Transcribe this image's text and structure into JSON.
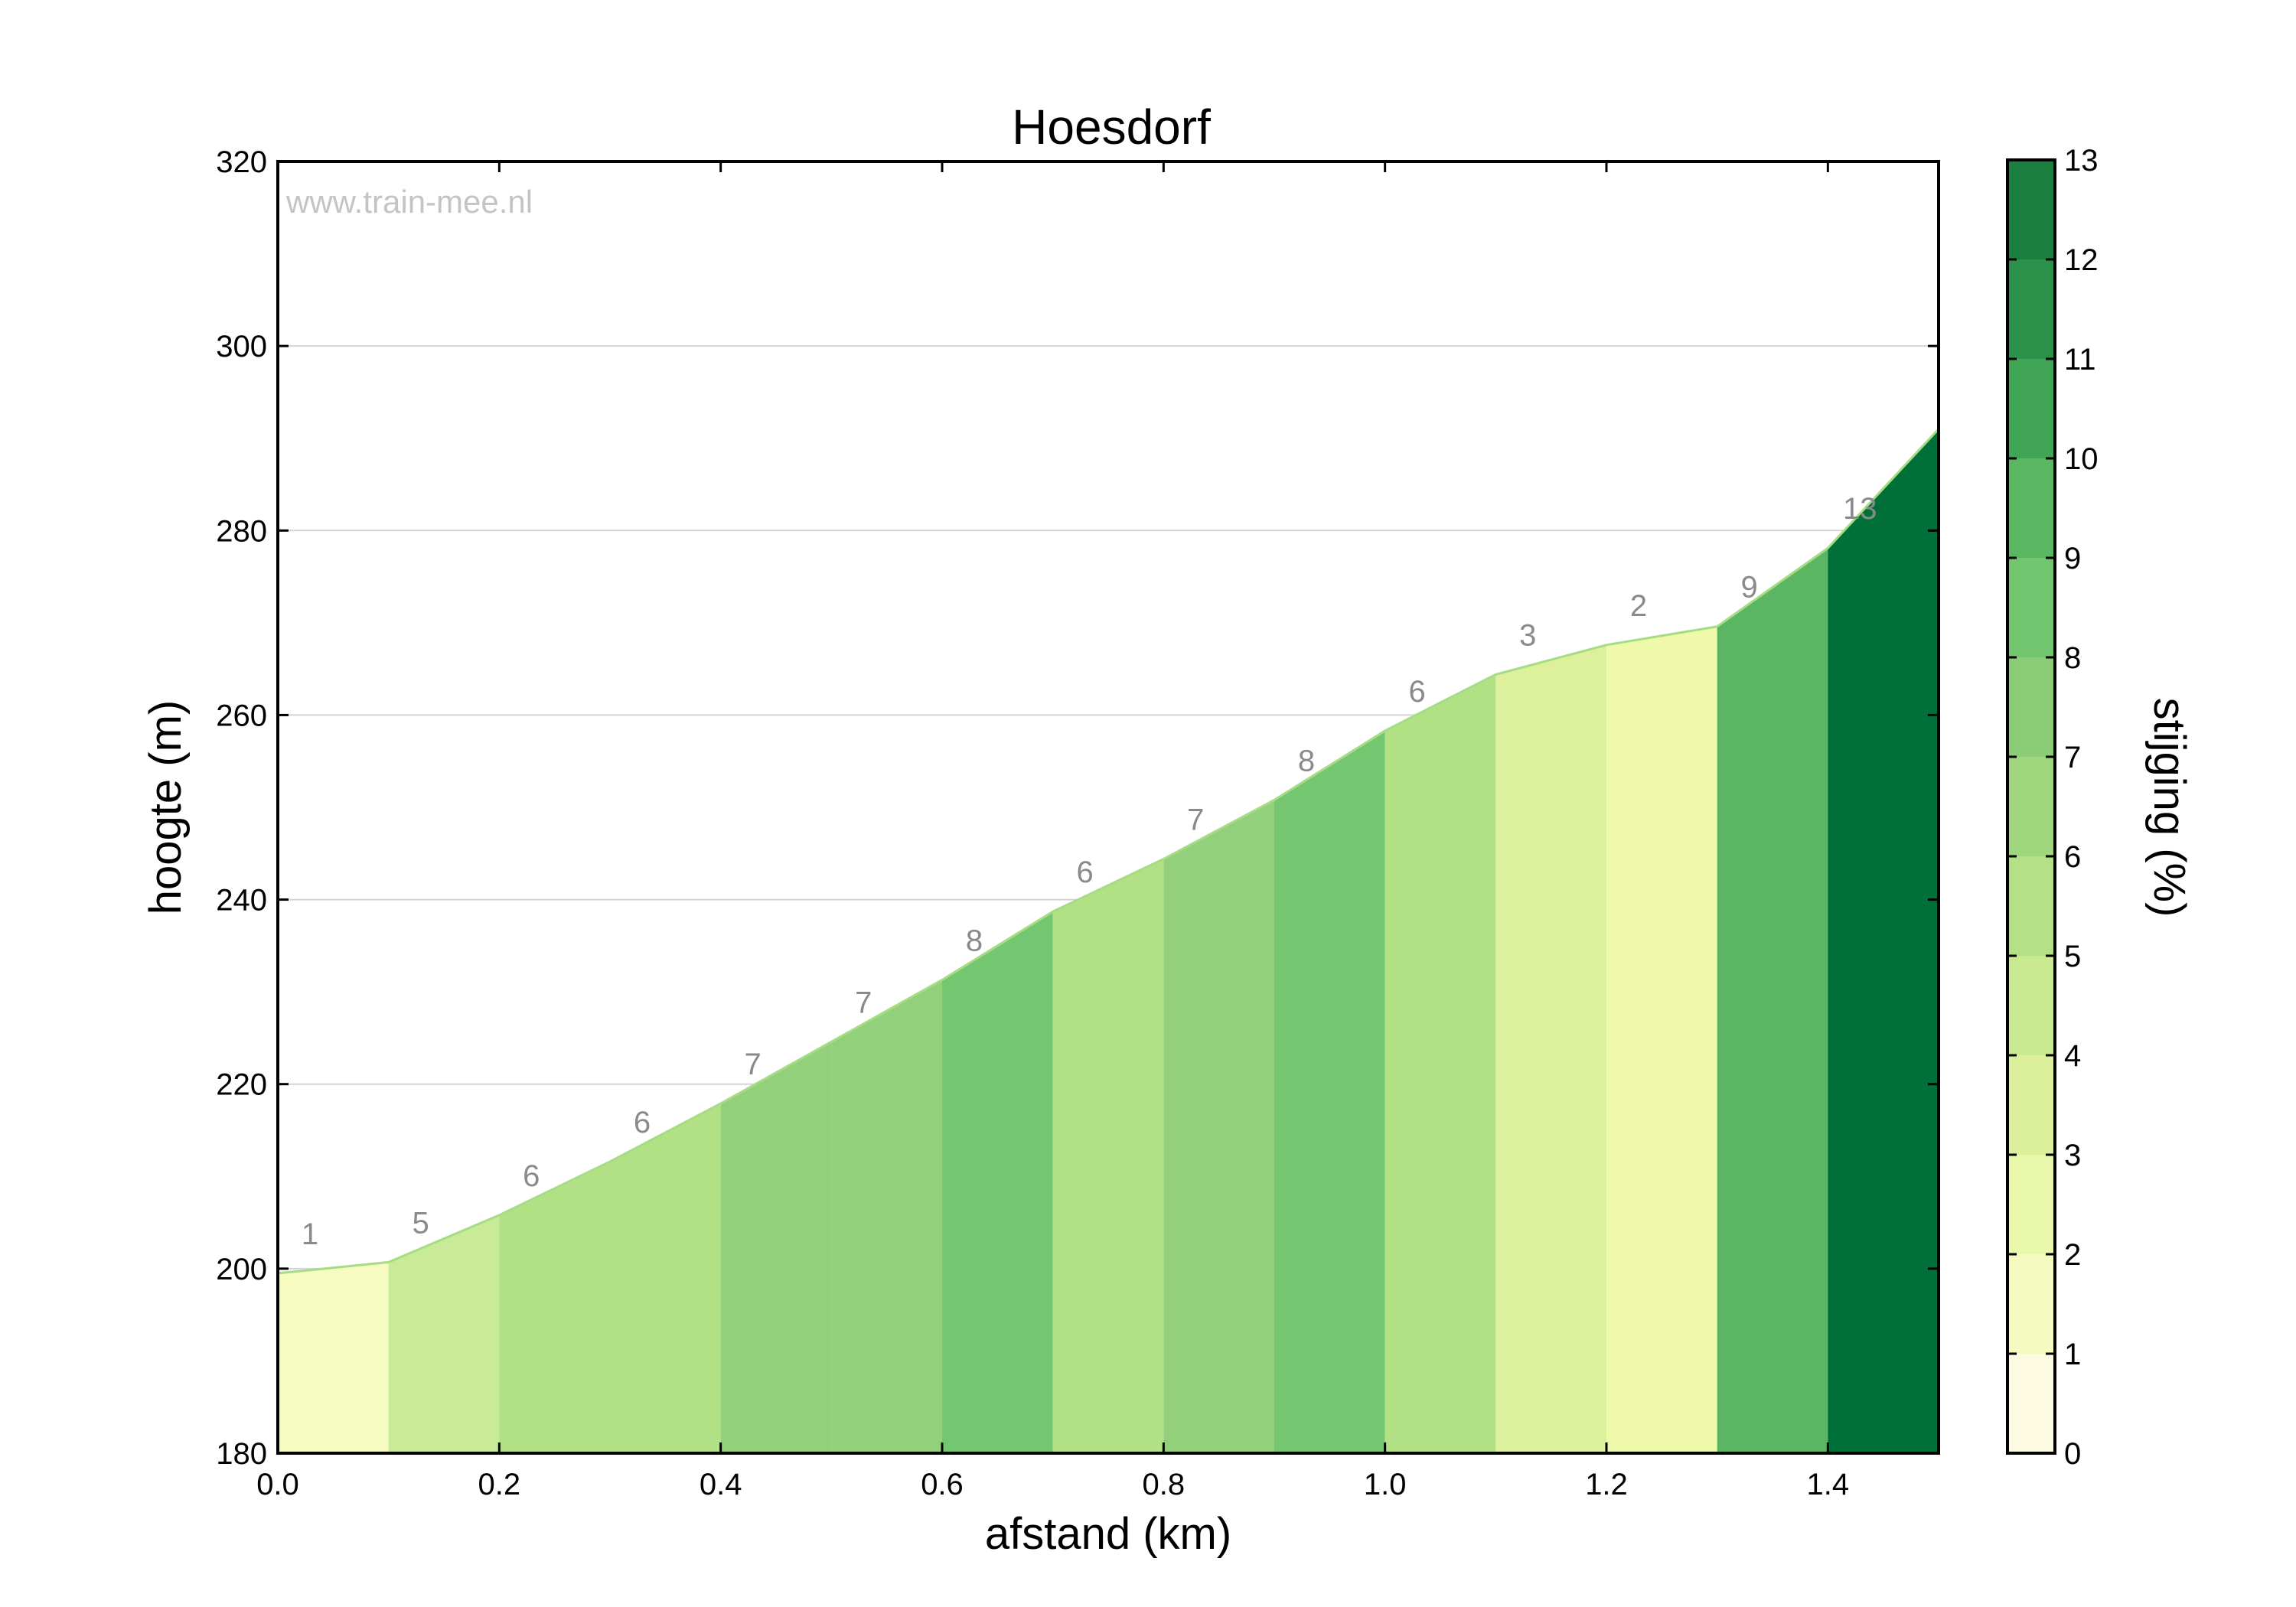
{
  "chart_data": {
    "type": "area",
    "title": "Hoesdorf",
    "watermark": "www.train-mee.nl",
    "xlabel": "afstand (km)",
    "ylabel": "hoogte (m)",
    "xlim": [
      0,
      1.5
    ],
    "ylim": [
      180,
      320
    ],
    "xticks": [
      "0.0",
      "0.2",
      "0.4",
      "0.6",
      "0.8",
      "1.0",
      "1.2",
      "1.4"
    ],
    "yticks": [
      "180",
      "200",
      "220",
      "240",
      "260",
      "280",
      "300",
      "320"
    ],
    "grid": true,
    "profile": {
      "x": [
        0.0,
        0.1,
        0.2,
        0.3,
        0.4,
        0.5,
        0.6,
        0.7,
        0.8,
        0.9,
        1.0,
        1.1,
        1.2,
        1.3,
        1.4,
        1.5
      ],
      "y": [
        199.5,
        200.7,
        205.8,
        211.6,
        217.9,
        224.6,
        231.3,
        238.7,
        244.4,
        250.8,
        258.3,
        264.4,
        267.6,
        269.6,
        278.1,
        291.0
      ]
    },
    "segments": [
      {
        "grade": 1,
        "label": "1"
      },
      {
        "grade": 5,
        "label": "5"
      },
      {
        "grade": 6,
        "label": "6"
      },
      {
        "grade": 6,
        "label": "6"
      },
      {
        "grade": 7,
        "label": "7"
      },
      {
        "grade": 7,
        "label": "7"
      },
      {
        "grade": 8,
        "label": "8"
      },
      {
        "grade": 6,
        "label": "6"
      },
      {
        "grade": 7,
        "label": "7"
      },
      {
        "grade": 8,
        "label": "8"
      },
      {
        "grade": 6,
        "label": "6"
      },
      {
        "grade": 3,
        "label": "3"
      },
      {
        "grade": 2,
        "label": "2"
      },
      {
        "grade": 9,
        "label": "9"
      },
      {
        "grade": 13,
        "label": "13"
      }
    ],
    "colorbar": {
      "label": "stijging (%)",
      "range": [
        0,
        13
      ],
      "ticks": [
        "0",
        "1",
        "2",
        "3",
        "4",
        "5",
        "6",
        "7",
        "8",
        "9",
        "10",
        "11",
        "12",
        "13"
      ],
      "colors": [
        "#fcfbe2",
        "#f5fbc0",
        "#eaf8ab",
        "#dcf09c",
        "#caea92",
        "#b4e086",
        "#9fd67e",
        "#8acd76",
        "#72c66f",
        "#5ab762",
        "#40a656",
        "#2b914b",
        "#1b7f40"
      ],
      "segment_colors": {
        "1": "#f6fbbf",
        "2": "#eefaaa",
        "3": "#ddf09c",
        "5": "#c9ea96",
        "6": "#b2e085",
        "7": "#93d07b",
        "8": "#74c670",
        "9": "#5ab662",
        "13": "#006f38"
      }
    }
  }
}
